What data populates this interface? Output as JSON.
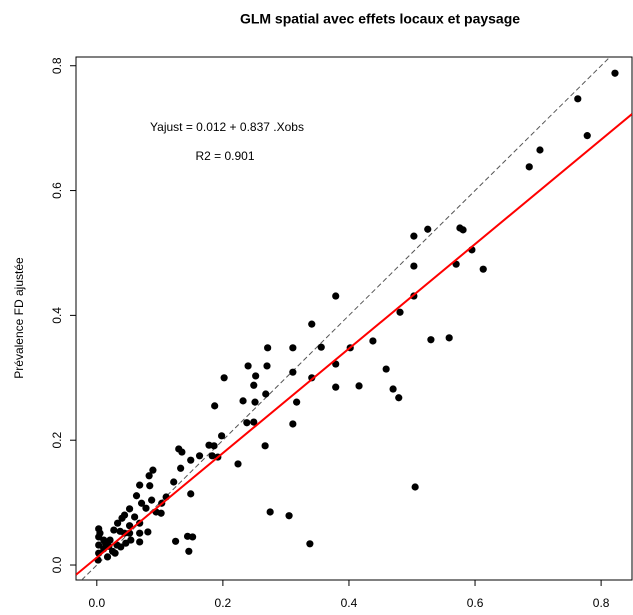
{
  "chart_data": {
    "type": "scatter",
    "title": "GLM spatial avec effets locaux et paysage",
    "y_label": "Prévalence FD ajustée",
    "annotations": [
      "Yajust = 0.012 + 0.837 .Xobs",
      "R2 = 0.901"
    ],
    "xlim": [
      -0.033,
      0.849
    ],
    "ylim": [
      -0.024,
      0.814
    ],
    "xticks": [
      {
        "value": 0,
        "label": "0.0"
      },
      0.2,
      0.4,
      0.6,
      0.8
    ],
    "yticks": [
      {
        "value": 0,
        "label": "0.0"
      },
      0.2,
      0.4,
      0.6,
      0.8
    ],
    "color": "#000000",
    "fit_line": {
      "intercept": 0.012,
      "slope": 0.837,
      "color": "#ff0000"
    },
    "reference_line": {
      "intercept": 0,
      "slope": 1,
      "color": "#555555",
      "dashed": true
    },
    "x": [
      0.822,
      0.763,
      0.778,
      0.703,
      0.686,
      0.595,
      0.613,
      0.57,
      0.576,
      0.581,
      0.525,
      0.503,
      0.503,
      0.503,
      0.481,
      0.559,
      0.53,
      0.459,
      0.47,
      0.479,
      0.505,
      0.438,
      0.402,
      0.379,
      0.379,
      0.379,
      0.416,
      0.341,
      0.356,
      0.311,
      0.271,
      0.311,
      0.341,
      0.317,
      0.311,
      0.27,
      0.268,
      0.252,
      0.249,
      0.24,
      0.232,
      0.251,
      0.249,
      0.238,
      0.224,
      0.267,
      0.275,
      0.305,
      0.338,
      0.202,
      0.187,
      0.198,
      0.186,
      0.183,
      0.192,
      0.178,
      0.163,
      0.149,
      0.135,
      0.13,
      0.133,
      0.122,
      0.149,
      0.11,
      0.103,
      0.094,
      0.102,
      0.087,
      0.089,
      0.083,
      0.068,
      0.084,
      0.063,
      0.071,
      0.052,
      0.078,
      0.06,
      0.068,
      0.052,
      0.04,
      0.044,
      0.033,
      0.027,
      0.037,
      0.044,
      0.052,
      0.021,
      0.014,
      0.005,
      0.003,
      0.003,
      0.003,
      0.003,
      0.002,
      0.011,
      0.019,
      0.025,
      0.032,
      0.038,
      0.046,
      0.054,
      0.068,
      0.068,
      0.081,
      0.125,
      0.144,
      0.152,
      0.146,
      0.011,
      0.017,
      0.029
    ],
    "y": [
      0.788,
      0.747,
      0.688,
      0.665,
      0.638,
      0.505,
      0.474,
      0.482,
      0.54,
      0.537,
      0.538,
      0.527,
      0.479,
      0.431,
      0.405,
      0.364,
      0.361,
      0.314,
      0.282,
      0.268,
      0.125,
      0.359,
      0.348,
      0.431,
      0.322,
      0.285,
      0.287,
      0.386,
      0.349,
      0.348,
      0.348,
      0.309,
      0.3,
      0.261,
      0.226,
      0.319,
      0.274,
      0.303,
      0.288,
      0.319,
      0.263,
      0.261,
      0.229,
      0.228,
      0.162,
      0.191,
      0.085,
      0.079,
      0.034,
      0.3,
      0.255,
      0.207,
      0.191,
      0.175,
      0.173,
      0.192,
      0.175,
      0.168,
      0.181,
      0.186,
      0.155,
      0.133,
      0.114,
      0.109,
      0.099,
      0.085,
      0.083,
      0.104,
      0.152,
      0.143,
      0.128,
      0.127,
      0.111,
      0.099,
      0.09,
      0.091,
      0.077,
      0.067,
      0.063,
      0.075,
      0.08,
      0.067,
      0.056,
      0.054,
      0.051,
      0.051,
      0.04,
      0.034,
      0.051,
      0.058,
      0.045,
      0.032,
      0.019,
      0.008,
      0.026,
      0.03,
      0.022,
      0.032,
      0.029,
      0.035,
      0.04,
      0.037,
      0.051,
      0.053,
      0.038,
      0.046,
      0.045,
      0.022,
      0.04,
      0.013,
      0.019
    ]
  }
}
